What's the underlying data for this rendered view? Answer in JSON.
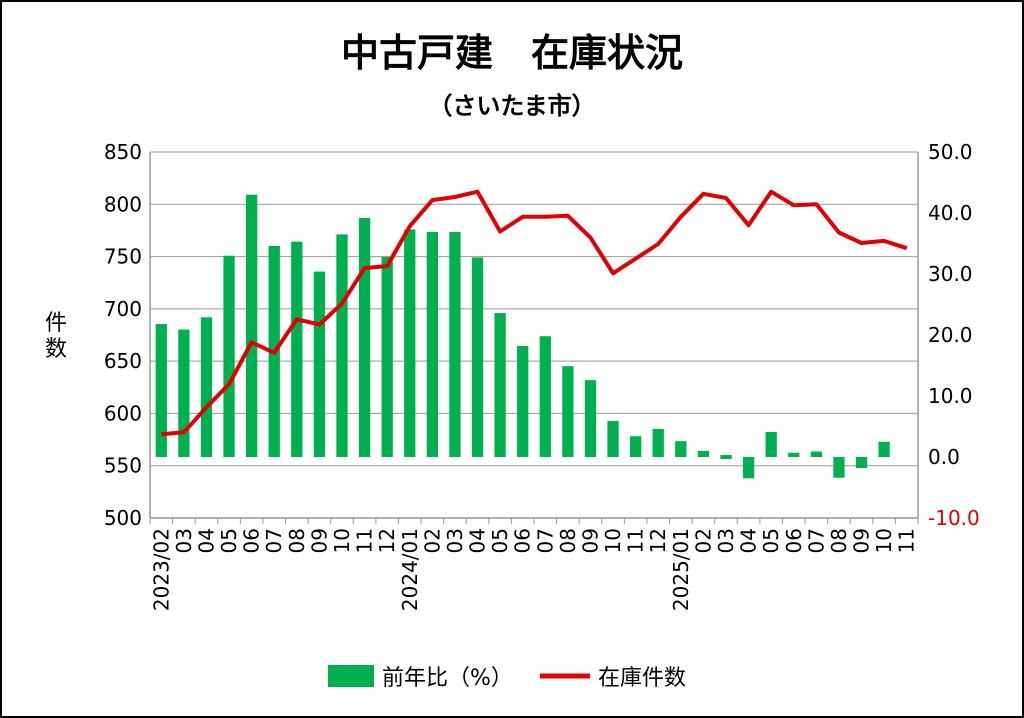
{
  "chart_data": {
    "type": "bar+line",
    "title": "中古戸建　在庫状況",
    "subtitle": "（さいたま市）",
    "ylabel": "件数",
    "y_left": {
      "min": 500,
      "max": 850,
      "ticks": [
        "500",
        "550",
        "600",
        "650",
        "700",
        "750",
        "800",
        "850"
      ]
    },
    "y_right": {
      "min": -10,
      "max": 50,
      "ticks": [
        "-10.0",
        "0.0",
        "10.0",
        "20.0",
        "30.0",
        "40.0",
        "50.0"
      ]
    },
    "x_labels": [
      "2023/02",
      "03",
      "04",
      "05",
      "06",
      "07",
      "08",
      "09",
      "10",
      "11",
      "12",
      "2024/01",
      "02",
      "03",
      "04",
      "05",
      "06",
      "07",
      "08",
      "09",
      "10",
      "11",
      "12",
      "2025/01",
      "02",
      "03",
      "04",
      "05",
      "06",
      "07",
      "08",
      "09",
      "10",
      "11"
    ],
    "series": [
      {
        "name": "前年比（%）",
        "axis": "right",
        "kind": "bar",
        "color": "#00b050",
        "values": [
          21.8,
          20.9,
          22.9,
          33.0,
          43.0,
          34.6,
          35.3,
          30.4,
          36.5,
          39.2,
          32.8,
          37.3,
          36.9,
          36.9,
          32.7,
          23.6,
          18.2,
          19.8,
          14.9,
          12.6,
          5.9,
          3.4,
          4.6,
          2.6,
          1.0,
          0.0,
          -3.5,
          4.1,
          0.7,
          0.9,
          -3.4,
          -1.8,
          2.5,
          null
        ]
      },
      {
        "name": "在庫件数",
        "axis": "left",
        "kind": "line",
        "color": "#e00000",
        "values": [
          580,
          582,
          606,
          628,
          668,
          658,
          690,
          685,
          705,
          739,
          741,
          779,
          804,
          807,
          812,
          774,
          788,
          788,
          789,
          768,
          734,
          748,
          762,
          788,
          810,
          806,
          780,
          812,
          799,
          800,
          773,
          763,
          765,
          758
        ]
      }
    ],
    "legend": {
      "placement": "bottom",
      "items": [
        "前年比（%）",
        "在庫件数"
      ]
    },
    "grid": true,
    "colors": {
      "bar": "#00b050",
      "line": "#e00000",
      "neg_tick": "#e00000"
    }
  }
}
